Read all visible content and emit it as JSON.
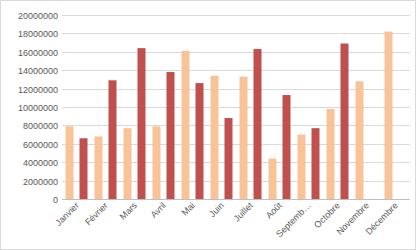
{
  "chart_data": {
    "type": "bar",
    "categories": [
      "Janvier",
      "Février",
      "Mars",
      "Avril",
      "Mai",
      "Juin",
      "Juillet",
      "Août",
      "Septemb…",
      "Octobre",
      "Novembre",
      "Décembre"
    ],
    "series": [
      {
        "color": "#f9c39a",
        "values": [
          7900000,
          6800000,
          7700000,
          7900000,
          16100000,
          13400000,
          13300000,
          4400000,
          7000000,
          9800000,
          12800000,
          18200000
        ]
      },
      {
        "color": "#c0504d",
        "values": [
          6600000,
          12900000,
          16400000,
          13800000,
          12600000,
          8800000,
          16300000,
          11300000,
          7700000,
          16900000,
          null,
          null
        ]
      }
    ],
    "ylim": [
      0,
      20000000
    ],
    "yticks": [
      0,
      2000000,
      4000000,
      6000000,
      8000000,
      10000000,
      12000000,
      14000000,
      16000000,
      18000000,
      20000000
    ],
    "grid": true
  }
}
